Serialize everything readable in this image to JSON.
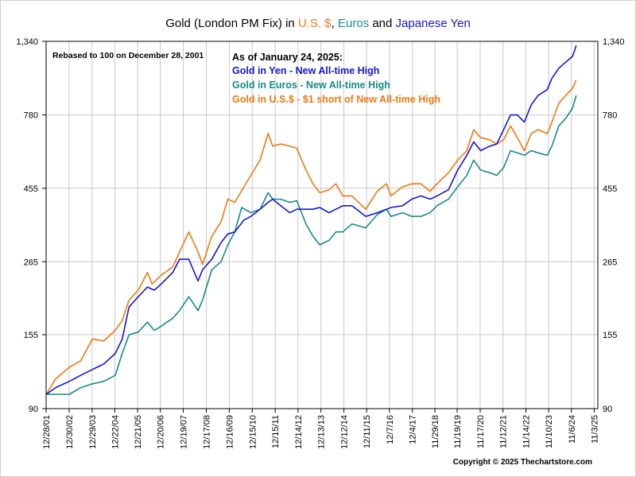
{
  "chart_data": {
    "type": "line",
    "title": {
      "prefix": "Gold (London PM Fix) in ",
      "usd": "U.S. $",
      "sep": ", ",
      "eur": "Euros",
      "and": " and ",
      "jpy": "Japanese Yen"
    },
    "note": "Rebased to 100 on December 28, 2001",
    "annotation": {
      "header": "As of January 24, 2025:",
      "lines": [
        {
          "text": "Gold in Yen - New All-time High",
          "color": "#1414d9"
        },
        {
          "text": "Gold in Euros - New All-time High",
          "color": "#168a8a"
        },
        {
          "text": "Gold in U.S.$ - $1 short of New All-time High",
          "color": "#f07810"
        }
      ]
    },
    "copyright": "Copyright © 2025 Thechartstore.com",
    "yscale": "log",
    "ylim": [
      90,
      1340
    ],
    "y_ticks": [
      90,
      155,
      265,
      455,
      780,
      1340
    ],
    "y_tick_labels": [
      "90",
      "155",
      "265",
      "455",
      "780",
      "1,340"
    ],
    "xlim": [
      2001.99,
      2026.0
    ],
    "x_ticks": [
      2001.99,
      2002.99,
      2003.99,
      2004.98,
      2005.97,
      2006.96,
      2007.96,
      2008.96,
      2009.96,
      2010.96,
      2011.96,
      2012.95,
      2013.95,
      2014.95,
      2015.94,
      2016.93,
      2017.93,
      2018.91,
      2019.88,
      2020.88,
      2021.87,
      2022.87,
      2023.86,
      2024.85,
      2025.84
    ],
    "x_tick_labels": [
      "12/28/01",
      "12/30/02",
      "12/29/03",
      "12/22/04",
      "12/21/05",
      "12/20/06",
      "12/19/07",
      "12/17/08",
      "12/16/09",
      "12/15/10",
      "12/15/11",
      "12/14/12",
      "12/13/13",
      "12/12/14",
      "12/11/15",
      "12/7/16",
      "12/4/17",
      "11/29/18",
      "11/19/19",
      "11/17/20",
      "11/12/21",
      "11/14/22",
      "11/10/23",
      "11/6/24",
      "11/3/25"
    ],
    "grid": true,
    "series": [
      {
        "name": "Gold in U.S.$",
        "color": "#f07810",
        "x": [
          2002.0,
          2002.4,
          2003.0,
          2003.5,
          2004.0,
          2004.5,
          2005.0,
          2005.3,
          2005.6,
          2006.0,
          2006.4,
          2006.6,
          2007.0,
          2007.5,
          2007.8,
          2008.2,
          2008.6,
          2008.8,
          2009.2,
          2009.6,
          2009.9,
          2010.2,
          2010.6,
          2010.9,
          2011.3,
          2011.65,
          2011.85,
          2012.2,
          2012.6,
          2012.9,
          2013.3,
          2013.6,
          2013.9,
          2014.3,
          2014.6,
          2014.9,
          2015.3,
          2015.9,
          2016.4,
          2016.8,
          2017.0,
          2017.5,
          2017.9,
          2018.3,
          2018.7,
          2019.0,
          2019.5,
          2019.9,
          2020.3,
          2020.6,
          2020.9,
          2021.3,
          2021.6,
          2021.9,
          2022.2,
          2022.5,
          2022.8,
          2023.1,
          2023.4,
          2023.8,
          2024.0,
          2024.3,
          2024.6,
          2024.9,
          2025.06
        ],
        "y": [
          100,
          112,
          122,
          128,
          150,
          148,
          160,
          172,
          200,
          215,
          245,
          225,
          240,
          255,
          285,
          330,
          285,
          260,
          320,
          355,
          420,
          410,
          460,
          500,
          560,
          680,
          620,
          630,
          620,
          610,
          520,
          470,
          440,
          450,
          470,
          430,
          430,
          390,
          445,
          470,
          430,
          460,
          470,
          470,
          445,
          470,
          510,
          560,
          600,
          700,
          660,
          650,
          630,
          650,
          720,
          660,
          600,
          680,
          700,
          680,
          740,
          850,
          900,
          950,
          1010
        ]
      },
      {
        "name": "Gold in Euros",
        "color": "#168a8a",
        "x": [
          2002.0,
          2002.4,
          2003.0,
          2003.5,
          2004.0,
          2004.5,
          2005.0,
          2005.3,
          2005.6,
          2006.0,
          2006.4,
          2006.7,
          2007.0,
          2007.5,
          2007.8,
          2008.2,
          2008.6,
          2008.8,
          2009.2,
          2009.6,
          2009.9,
          2010.2,
          2010.5,
          2010.9,
          2011.3,
          2011.65,
          2011.85,
          2012.2,
          2012.6,
          2012.9,
          2013.3,
          2013.6,
          2013.9,
          2014.3,
          2014.6,
          2014.9,
          2015.3,
          2015.9,
          2016.4,
          2016.8,
          2017.0,
          2017.5,
          2017.9,
          2018.3,
          2018.7,
          2019.0,
          2019.5,
          2019.9,
          2020.3,
          2020.6,
          2020.9,
          2021.3,
          2021.6,
          2021.9,
          2022.2,
          2022.5,
          2022.8,
          2023.1,
          2023.4,
          2023.8,
          2024.0,
          2024.3,
          2024.6,
          2024.9,
          2025.06
        ],
        "y": [
          100,
          100,
          100,
          105,
          108,
          110,
          115,
          135,
          155,
          158,
          170,
          160,
          165,
          175,
          185,
          205,
          185,
          200,
          250,
          265,
          300,
          330,
          395,
          380,
          390,
          440,
          420,
          420,
          410,
          415,
          350,
          320,
          300,
          310,
          330,
          330,
          350,
          340,
          375,
          390,
          370,
          380,
          370,
          370,
          380,
          400,
          420,
          460,
          500,
          560,
          520,
          510,
          500,
          530,
          600,
          590,
          580,
          600,
          590,
          580,
          620,
          720,
          760,
          820,
          900
        ]
      },
      {
        "name": "Gold in Yen",
        "color": "#1414d9",
        "x": [
          2002.0,
          2002.4,
          2003.0,
          2003.5,
          2004.0,
          2004.5,
          2005.0,
          2005.3,
          2005.6,
          2006.0,
          2006.4,
          2006.7,
          2007.0,
          2007.5,
          2007.8,
          2008.2,
          2008.6,
          2008.8,
          2009.2,
          2009.6,
          2009.9,
          2010.2,
          2010.6,
          2010.9,
          2011.3,
          2011.65,
          2011.85,
          2012.2,
          2012.6,
          2012.9,
          2013.3,
          2013.6,
          2013.9,
          2014.3,
          2014.6,
          2014.9,
          2015.3,
          2015.9,
          2016.4,
          2016.8,
          2017.0,
          2017.5,
          2017.9,
          2018.3,
          2018.7,
          2019.0,
          2019.5,
          2019.9,
          2020.3,
          2020.6,
          2020.9,
          2021.3,
          2021.6,
          2021.9,
          2022.2,
          2022.5,
          2022.8,
          2023.1,
          2023.4,
          2023.8,
          2024.0,
          2024.3,
          2024.6,
          2024.9,
          2025.06
        ],
        "y": [
          100,
          105,
          110,
          115,
          120,
          125,
          135,
          150,
          190,
          205,
          220,
          215,
          225,
          245,
          270,
          270,
          230,
          250,
          270,
          305,
          325,
          330,
          360,
          370,
          390,
          410,
          420,
          400,
          380,
          390,
          390,
          390,
          395,
          380,
          390,
          400,
          400,
          370,
          380,
          390,
          395,
          400,
          420,
          430,
          420,
          430,
          450,
          520,
          580,
          640,
          600,
          620,
          630,
          700,
          780,
          780,
          740,
          840,
          900,
          940,
          1020,
          1100,
          1150,
          1200,
          1300
        ]
      }
    ]
  }
}
